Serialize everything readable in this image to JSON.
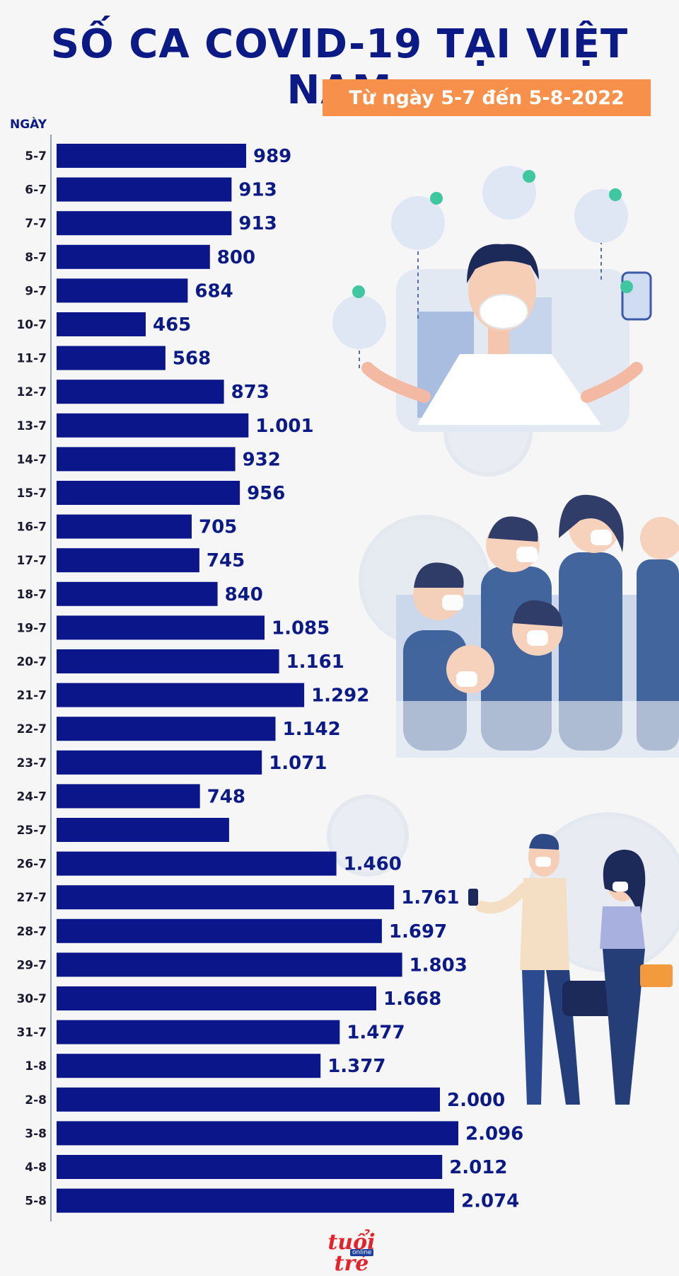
{
  "title": "SỐ CA COVID-19 TẠI VIỆT NAM",
  "subtitle": "Từ ngày 5-7 đến 5-8-2022",
  "logo": "tuổi trẻ",
  "logo_sub": "online",
  "colors": {
    "title": "#0b1a84",
    "bar": "#0a1689",
    "subtitle_bg": "#f7904a",
    "background": "#f6f6f7"
  },
  "chart_data": {
    "type": "bar",
    "orientation": "horizontal",
    "ylabel": "NGÀY",
    "categories": [
      "5-7",
      "6-7",
      "7-7",
      "8-7",
      "9-7",
      "10-7",
      "11-7",
      "12-7",
      "13-7",
      "14-7",
      "15-7",
      "16-7",
      "17-7",
      "18-7",
      "19-7",
      "20-7",
      "21-7",
      "22-7",
      "23-7",
      "24-7",
      "25-7",
      "26-7",
      "27-7",
      "28-7",
      "29-7",
      "30-7",
      "31-7",
      "1-8",
      "2-8",
      "3-8",
      "4-8",
      "5-8"
    ],
    "values": [
      989,
      913,
      913,
      800,
      684,
      465,
      568,
      873,
      1001,
      932,
      956,
      705,
      745,
      840,
      1085,
      1161,
      1292,
      1142,
      1071,
      748,
      900,
      1460,
      1761,
      1697,
      1803,
      1668,
      1477,
      1377,
      2000,
      2096,
      2012,
      2074
    ],
    "value_labels": [
      "989",
      "913",
      "913",
      "800",
      "684",
      "465",
      "568",
      "873",
      "1.001",
      "932",
      "956",
      "705",
      "745",
      "840",
      "1.085",
      "1.161",
      "1.292",
      "1.142",
      "1.071",
      "748",
      "",
      "1.460",
      "1.761",
      "1.697",
      "1.803",
      "1.668",
      "1.477",
      "1.377",
      "2.000",
      "2.096",
      "2.012",
      "2.074"
    ],
    "xlim": [
      0,
      2096
    ],
    "grid": false,
    "legend": "none"
  }
}
